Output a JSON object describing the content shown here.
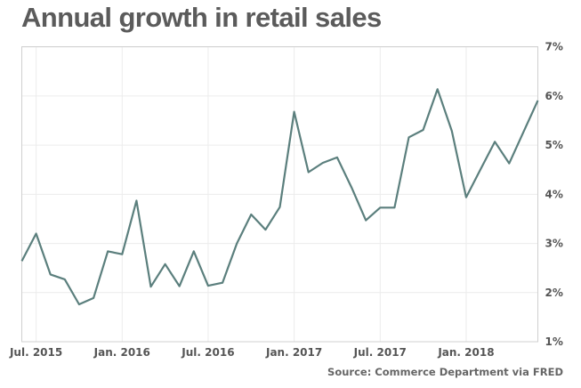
{
  "chart_data": {
    "type": "line",
    "title": "Annual growth in retail sales",
    "source": "Source: Commerce Department via FRED",
    "xlabel": "",
    "ylabel": "",
    "ylim": [
      1,
      7
    ],
    "y_ticks": [
      "1%",
      "2%",
      "3%",
      "4%",
      "5%",
      "6%",
      "7%"
    ],
    "y_tick_values": [
      1,
      2,
      3,
      4,
      5,
      6,
      7
    ],
    "x_tick_labels": [
      "Jul. 2015",
      "Jan. 2016",
      "Jul. 2016",
      "Jan. 2017",
      "Jul. 2017",
      "Jan. 2018"
    ],
    "x_tick_indices": [
      1,
      7,
      13,
      19,
      25,
      31
    ],
    "grid": true,
    "line_color": "#5b7f7d",
    "x": [
      "2015-06",
      "2015-07",
      "2015-08",
      "2015-09",
      "2015-10",
      "2015-11",
      "2015-12",
      "2016-01",
      "2016-02",
      "2016-03",
      "2016-04",
      "2016-05",
      "2016-06",
      "2016-07",
      "2016-08",
      "2016-09",
      "2016-10",
      "2016-11",
      "2016-12",
      "2017-01",
      "2017-02",
      "2017-03",
      "2017-04",
      "2017-05",
      "2017-06",
      "2017-07",
      "2017-08",
      "2017-09",
      "2017-10",
      "2017-11",
      "2017-12",
      "2018-01",
      "2018-02",
      "2018-03",
      "2018-04",
      "2018-05",
      "2018-06"
    ],
    "series": [
      {
        "name": "Annual growth in retail sales (%)",
        "values": [
          2.64,
          3.2,
          2.37,
          2.27,
          1.76,
          1.89,
          2.84,
          2.78,
          3.87,
          2.12,
          2.58,
          2.13,
          2.84,
          2.14,
          2.2,
          3.0,
          3.59,
          3.28,
          3.74,
          5.68,
          4.45,
          4.64,
          4.75,
          4.14,
          3.47,
          3.73,
          3.73,
          5.16,
          5.31,
          6.14,
          5.29,
          3.94,
          4.51,
          5.07,
          4.63,
          5.27,
          5.91
        ]
      }
    ]
  }
}
